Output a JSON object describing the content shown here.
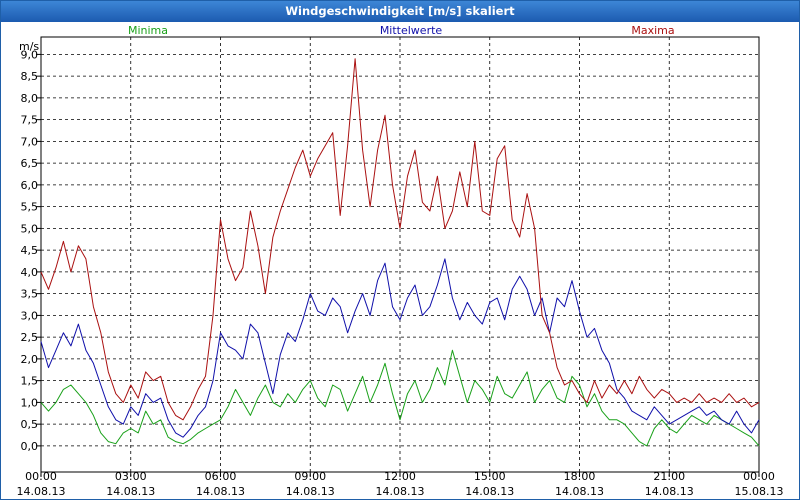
{
  "window": {
    "title": "Windgeschwindigkeit [m/s] skaliert"
  },
  "chart_data": {
    "type": "line",
    "title": "Windgeschwindigkeit [m/s] skaliert",
    "ylabel": "m/s",
    "xlabel": "",
    "ylim": [
      -0.6,
      9.4
    ],
    "xlim": [
      0,
      24
    ],
    "grid": true,
    "yticks": [
      "0,0",
      "0,5",
      "1,0",
      "1,5",
      "2,0",
      "2,5",
      "3,0",
      "3,5",
      "4,0",
      "4,5",
      "5,0",
      "5,5",
      "6,0",
      "6,5",
      "7,0",
      "7,5",
      "8,0",
      "8,5",
      "9,0"
    ],
    "xticks": [
      {
        "time": "00:00",
        "date": "14.08.13"
      },
      {
        "time": "03:00",
        "date": "14.08.13"
      },
      {
        "time": "06:00",
        "date": "14.08.13"
      },
      {
        "time": "09:00",
        "date": "14.08.13"
      },
      {
        "time": "12:00",
        "date": "14.08.13"
      },
      {
        "time": "15:00",
        "date": "14.08.13"
      },
      {
        "time": "18:00",
        "date": "14.08.13"
      },
      {
        "time": "21:00",
        "date": "14.08.13"
      },
      {
        "time": "00:00",
        "date": "15.08.13"
      }
    ],
    "series": [
      {
        "name": "Minima",
        "color": "#1aa11a",
        "x": [
          0,
          0.25,
          0.5,
          0.75,
          1,
          1.25,
          1.5,
          1.75,
          2,
          2.25,
          2.5,
          2.75,
          3,
          3.25,
          3.5,
          3.75,
          4,
          4.25,
          4.5,
          4.75,
          5,
          5.25,
          5.5,
          5.75,
          6,
          6.25,
          6.5,
          6.75,
          7,
          7.25,
          7.5,
          7.75,
          8,
          8.25,
          8.5,
          8.75,
          9,
          9.25,
          9.5,
          9.75,
          10,
          10.25,
          10.5,
          10.75,
          11,
          11.25,
          11.5,
          11.75,
          12,
          12.25,
          12.5,
          12.75,
          13,
          13.25,
          13.5,
          13.75,
          14,
          14.25,
          14.5,
          14.75,
          15,
          15.25,
          15.5,
          15.75,
          16,
          16.25,
          16.5,
          16.75,
          17,
          17.25,
          17.5,
          17.75,
          18,
          18.25,
          18.5,
          18.75,
          19,
          19.25,
          19.5,
          19.75,
          20,
          20.25,
          20.5,
          20.75,
          21,
          21.25,
          21.5,
          21.75,
          22,
          22.25,
          22.5,
          22.75,
          23,
          23.25,
          23.5,
          23.75,
          24
        ],
        "values": [
          1.0,
          0.8,
          1.0,
          1.3,
          1.4,
          1.2,
          1.0,
          0.7,
          0.3,
          0.1,
          0.05,
          0.3,
          0.4,
          0.3,
          0.8,
          0.5,
          0.6,
          0.2,
          0.1,
          0.05,
          0.15,
          0.3,
          0.4,
          0.5,
          0.6,
          0.9,
          1.3,
          1.0,
          0.7,
          1.1,
          1.4,
          1.0,
          0.9,
          1.2,
          1.0,
          1.3,
          1.5,
          1.1,
          0.9,
          1.4,
          1.3,
          0.8,
          1.2,
          1.6,
          1.0,
          1.4,
          1.9,
          1.2,
          0.6,
          1.2,
          1.5,
          1.0,
          1.3,
          1.8,
          1.4,
          2.2,
          1.6,
          1.0,
          1.5,
          1.3,
          1.0,
          1.6,
          1.2,
          1.1,
          1.4,
          1.7,
          1.0,
          1.3,
          1.5,
          1.1,
          1.0,
          1.6,
          1.4,
          0.9,
          1.2,
          0.8,
          0.6,
          0.6,
          0.5,
          0.3,
          0.1,
          0.0,
          0.4,
          0.6,
          0.4,
          0.3,
          0.5,
          0.7,
          0.6,
          0.5,
          0.7,
          0.6,
          0.5,
          0.4,
          0.3,
          0.2,
          0.0
        ]
      },
      {
        "name": "Mittelwerte",
        "color": "#1010aa",
        "x": [
          0,
          0.25,
          0.5,
          0.75,
          1,
          1.25,
          1.5,
          1.75,
          2,
          2.25,
          2.5,
          2.75,
          3,
          3.25,
          3.5,
          3.75,
          4,
          4.25,
          4.5,
          4.75,
          5,
          5.25,
          5.5,
          5.75,
          6,
          6.25,
          6.5,
          6.75,
          7,
          7.25,
          7.5,
          7.75,
          8,
          8.25,
          8.5,
          8.75,
          9,
          9.25,
          9.5,
          9.75,
          10,
          10.25,
          10.5,
          10.75,
          11,
          11.25,
          11.5,
          11.75,
          12,
          12.25,
          12.5,
          12.75,
          13,
          13.25,
          13.5,
          13.75,
          14,
          14.25,
          14.5,
          14.75,
          15,
          15.25,
          15.5,
          15.75,
          16,
          16.25,
          16.5,
          16.75,
          17,
          17.25,
          17.5,
          17.75,
          18,
          18.25,
          18.5,
          18.75,
          19,
          19.25,
          19.5,
          19.75,
          20,
          20.25,
          20.5,
          20.75,
          21,
          21.25,
          21.5,
          21.75,
          22,
          22.25,
          22.5,
          22.75,
          23,
          23.25,
          23.5,
          23.75,
          24
        ],
        "values": [
          2.4,
          1.8,
          2.2,
          2.6,
          2.3,
          2.8,
          2.2,
          1.9,
          1.4,
          0.9,
          0.6,
          0.5,
          0.9,
          0.7,
          1.2,
          1.0,
          1.1,
          0.6,
          0.3,
          0.2,
          0.4,
          0.7,
          0.9,
          1.5,
          2.6,
          2.3,
          2.2,
          2.0,
          2.8,
          2.6,
          1.9,
          1.2,
          2.1,
          2.6,
          2.4,
          2.9,
          3.5,
          3.1,
          3.0,
          3.4,
          3.2,
          2.6,
          3.1,
          3.5,
          3.0,
          3.8,
          4.2,
          3.2,
          2.9,
          3.4,
          3.7,
          3.0,
          3.2,
          3.7,
          4.3,
          3.4,
          2.9,
          3.3,
          3.0,
          2.8,
          3.3,
          3.4,
          2.9,
          3.6,
          3.9,
          3.6,
          3.0,
          3.4,
          2.6,
          3.4,
          3.2,
          3.8,
          3.1,
          2.5,
          2.7,
          2.2,
          1.9,
          1.3,
          1.1,
          0.8,
          0.7,
          0.6,
          0.9,
          0.7,
          0.5,
          0.6,
          0.7,
          0.8,
          0.9,
          0.7,
          0.8,
          0.6,
          0.5,
          0.8,
          0.5,
          0.3,
          0.6
        ]
      },
      {
        "name": "Maxima",
        "color": "#aa1010",
        "x": [
          0,
          0.25,
          0.5,
          0.75,
          1,
          1.25,
          1.5,
          1.75,
          2,
          2.25,
          2.5,
          2.75,
          3,
          3.25,
          3.5,
          3.75,
          4,
          4.25,
          4.5,
          4.75,
          5,
          5.25,
          5.5,
          5.75,
          6,
          6.25,
          6.5,
          6.75,
          7,
          7.25,
          7.5,
          7.75,
          8,
          8.25,
          8.5,
          8.75,
          9,
          9.25,
          9.5,
          9.75,
          10,
          10.25,
          10.5,
          10.75,
          11,
          11.25,
          11.5,
          11.75,
          12,
          12.25,
          12.5,
          12.75,
          13,
          13.25,
          13.5,
          13.75,
          14,
          14.25,
          14.5,
          14.75,
          15,
          15.25,
          15.5,
          15.75,
          16,
          16.25,
          16.5,
          16.75,
          17,
          17.25,
          17.5,
          17.75,
          18,
          18.25,
          18.5,
          18.75,
          19,
          19.25,
          19.5,
          19.75,
          20,
          20.25,
          20.5,
          20.75,
          21,
          21.25,
          21.5,
          21.75,
          22,
          22.25,
          22.5,
          22.75,
          23,
          23.25,
          23.5,
          23.75,
          24
        ],
        "values": [
          4.0,
          3.6,
          4.1,
          4.7,
          4.0,
          4.6,
          4.3,
          3.2,
          2.6,
          1.7,
          1.2,
          1.0,
          1.4,
          1.1,
          1.7,
          1.5,
          1.6,
          1.0,
          0.7,
          0.6,
          0.9,
          1.3,
          1.6,
          3.0,
          5.2,
          4.3,
          3.8,
          4.1,
          5.4,
          4.6,
          3.5,
          4.8,
          5.4,
          5.9,
          6.4,
          6.8,
          6.2,
          6.6,
          6.9,
          7.2,
          5.3,
          6.9,
          8.9,
          6.8,
          5.5,
          6.8,
          7.6,
          6.0,
          5.0,
          6.2,
          6.8,
          5.6,
          5.4,
          6.2,
          5.0,
          5.4,
          6.3,
          5.5,
          7.0,
          5.4,
          5.3,
          6.6,
          6.9,
          5.2,
          4.8,
          5.8,
          5.0,
          3.0,
          2.6,
          1.8,
          1.4,
          1.5,
          1.2,
          1.0,
          1.5,
          1.1,
          1.4,
          1.2,
          1.5,
          1.2,
          1.6,
          1.3,
          1.1,
          1.3,
          1.2,
          1.0,
          1.1,
          1.0,
          1.2,
          1.0,
          1.1,
          1.0,
          1.2,
          1.0,
          1.1,
          0.9,
          1.0
        ]
      }
    ]
  }
}
